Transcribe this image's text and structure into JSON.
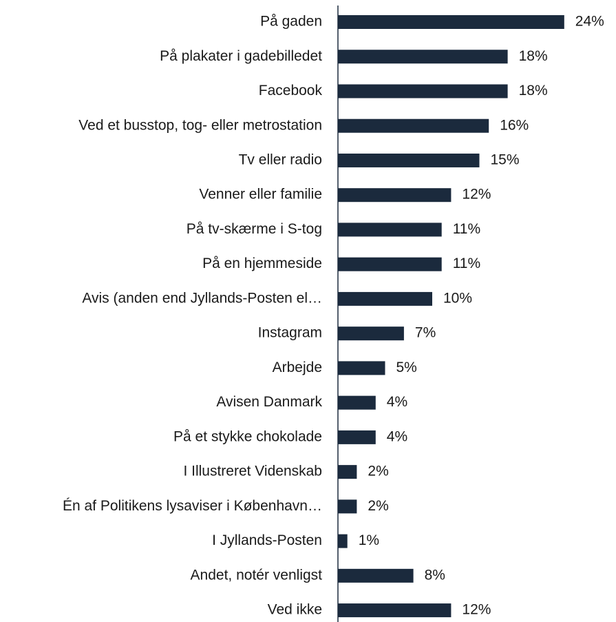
{
  "chart_data": {
    "type": "barh",
    "categories": [
      "På gaden",
      "På plakater i gadebilledet",
      "Facebook",
      "Ved et busstop, tog- eller metrostation",
      "Tv eller radio",
      "Venner eller familie",
      "På tv-skærme i S-tog",
      "På en hjemmeside",
      "Avis (anden end Jyllands-Posten el…",
      "Instagram",
      "Arbejde",
      "Avisen Danmark",
      "På et stykke chokolade",
      "I Illustreret Videnskab",
      "Én af Politikens lysaviser i København…",
      "I Jyllands-Posten",
      "Andet, notér venligst",
      "Ved ikke"
    ],
    "values": [
      24,
      18,
      18,
      16,
      15,
      12,
      11,
      11,
      10,
      7,
      5,
      4,
      4,
      2,
      2,
      1,
      8,
      12
    ],
    "value_labels": [
      "24%",
      "18%",
      "18%",
      "16%",
      "15%",
      "12%",
      "11%",
      "11%",
      "10%",
      "7%",
      "5%",
      "4%",
      "4%",
      "2%",
      "2%",
      "1%",
      "8%",
      "12%"
    ],
    "color": "#1b2a3d"
  }
}
